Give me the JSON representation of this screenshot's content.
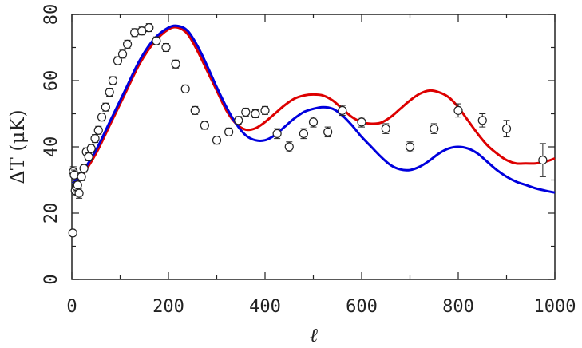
{
  "chart_data": {
    "type": "line",
    "title": "",
    "xlabel": "ℓ",
    "ylabel": "ΔT (μK)",
    "xlim": [
      0,
      1000
    ],
    "ylim": [
      0,
      80
    ],
    "x_ticks": [
      0,
      200,
      400,
      600,
      800,
      1000
    ],
    "y_ticks": [
      0,
      20,
      40,
      60,
      80
    ],
    "grid": false,
    "legend": "none",
    "series": [
      {
        "color": "#dd0000",
        "x": [
          2,
          20,
          50,
          80,
          110,
          140,
          170,
          200,
          220,
          240,
          260,
          280,
          300,
          320,
          340,
          360,
          380,
          400,
          420,
          440,
          460,
          480,
          500,
          520,
          540,
          560,
          580,
          600,
          620,
          640,
          660,
          680,
          700,
          720,
          740,
          760,
          780,
          800,
          820,
          840,
          860,
          880,
          900,
          920,
          940,
          960,
          980,
          1000
        ],
        "y": [
          28,
          31,
          38,
          47,
          56,
          65,
          71.5,
          75.5,
          76,
          74,
          69,
          63,
          57,
          51,
          47,
          45.2,
          45.6,
          47.5,
          50,
          52.5,
          54.5,
          55.5,
          55.8,
          55.5,
          54,
          51.5,
          49,
          47.5,
          47,
          47.3,
          49,
          51.5,
          54,
          56,
          57,
          56.5,
          55,
          52,
          48,
          44,
          40.5,
          38,
          36,
          35,
          35,
          35,
          35.5,
          36.5
        ]
      },
      {
        "color": "#0000dd",
        "x": [
          2,
          20,
          50,
          80,
          110,
          140,
          170,
          200,
          220,
          240,
          260,
          280,
          300,
          320,
          340,
          360,
          380,
          400,
          420,
          440,
          460,
          480,
          500,
          520,
          540,
          560,
          580,
          600,
          620,
          640,
          660,
          680,
          700,
          720,
          740,
          760,
          780,
          800,
          820,
          840,
          860,
          880,
          900,
          920,
          940,
          960,
          980,
          1000
        ],
        "y": [
          29,
          32,
          39,
          48,
          57,
          66,
          72.5,
          76,
          76.5,
          75,
          70.5,
          64.5,
          58,
          52,
          47,
          43.5,
          42,
          42,
          43.5,
          46,
          48.5,
          50.5,
          51.5,
          52,
          51.5,
          49.5,
          46.5,
          43,
          40,
          37,
          34.5,
          33.2,
          33,
          34,
          35.8,
          38,
          39.5,
          40,
          39.5,
          38,
          35.5,
          33,
          31,
          29.5,
          28.5,
          27.5,
          26.8,
          26.2
        ]
      }
    ],
    "points": {
      "marker": "open-circle",
      "x": [
        2,
        3,
        5,
        7,
        9,
        12,
        15,
        20,
        25,
        30,
        35,
        40,
        48,
        55,
        62,
        70,
        78,
        85,
        95,
        105,
        115,
        130,
        145,
        160,
        175,
        195,
        215,
        235,
        255,
        275,
        300,
        325,
        345,
        360,
        380,
        400,
        425,
        450,
        480,
        500,
        530,
        560,
        600,
        650,
        700,
        750,
        800,
        850,
        900,
        975
      ],
      "y": [
        14,
        32.5,
        31.5,
        26.8,
        28,
        28.5,
        26,
        31,
        33.5,
        38.5,
        37,
        39.5,
        42.5,
        45,
        49,
        52,
        56.5,
        60,
        66,
        68,
        71,
        74.5,
        75,
        76,
        72,
        70,
        65,
        57.5,
        51,
        46.5,
        42,
        44.5,
        48,
        50.5,
        50,
        51,
        44,
        40,
        44,
        47.5,
        44.5,
        51,
        47.5,
        45.5,
        40,
        45.5,
        51,
        48,
        45.5,
        36
      ],
      "err": [
        0,
        1.5,
        1.5,
        1.5,
        1.5,
        1.5,
        1.5,
        1.2,
        1.2,
        1.2,
        1.2,
        1.2,
        1.2,
        1.2,
        1.2,
        1.2,
        1.2,
        1.2,
        1.2,
        1.2,
        1.2,
        1.2,
        1.2,
        1.2,
        1.2,
        1.2,
        1.2,
        1.2,
        1.2,
        1.2,
        1.2,
        1.2,
        1.2,
        1.2,
        1.2,
        1.2,
        1.5,
        1.5,
        1.5,
        1.5,
        1.5,
        1.5,
        1.5,
        1.5,
        1.5,
        1.5,
        2,
        2,
        2.5,
        5
      ]
    }
  }
}
